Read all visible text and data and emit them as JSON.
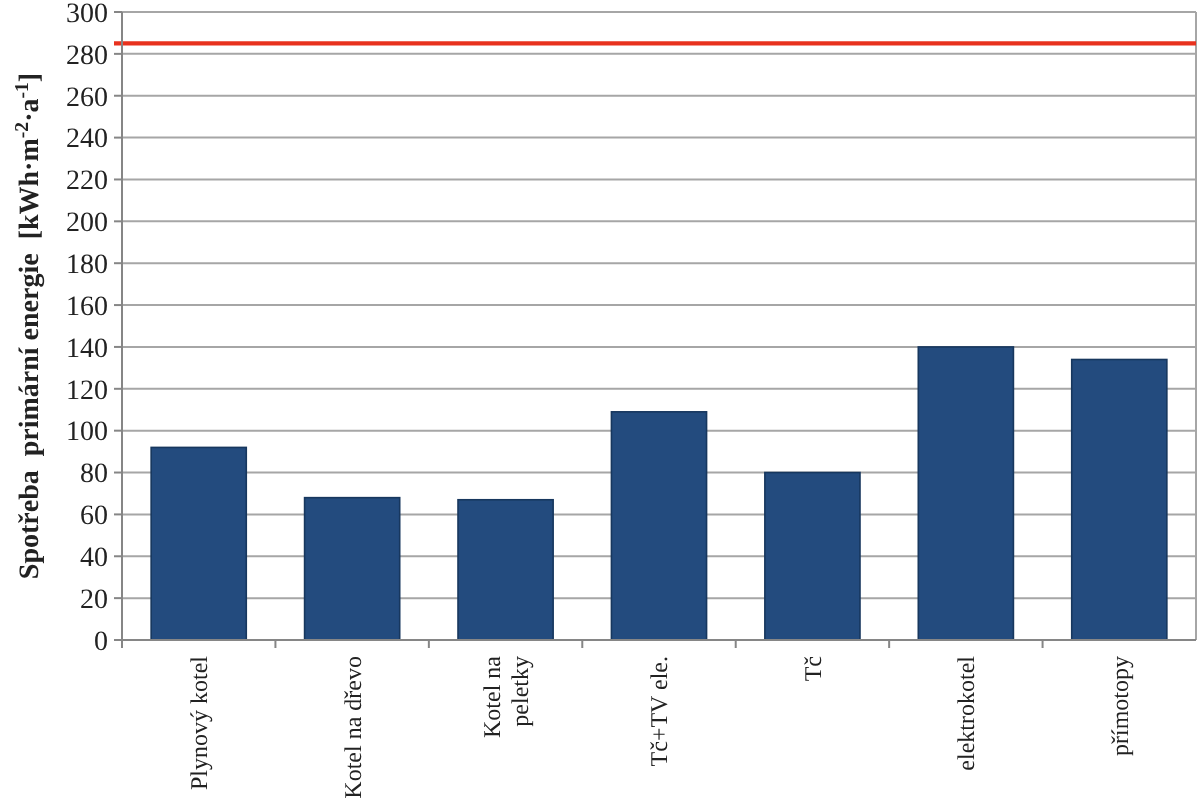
{
  "chart_data": {
    "type": "bar",
    "ylabel": "Spotřeba  primární energie  [kWh·m$^{-2}$·a$^{-1}$]",
    "categories": [
      "Plynový kotel",
      "Kotel na dřevo",
      "Kotel na peletky",
      "Tč+TV ele.",
      "Tč",
      "elektrokotel",
      "přímotopy"
    ],
    "values": [
      92,
      68,
      67,
      109,
      80,
      140,
      134
    ],
    "color": "#234b7e",
    "ylim": [
      0,
      300
    ],
    "yticks": [
      0,
      20,
      40,
      60,
      80,
      100,
      120,
      140,
      160,
      180,
      200,
      220,
      240,
      260,
      280,
      300
    ],
    "grid": "y",
    "ref_lines": [
      {
        "axis": "y",
        "value": 285,
        "color": "#e8321e"
      }
    ]
  }
}
